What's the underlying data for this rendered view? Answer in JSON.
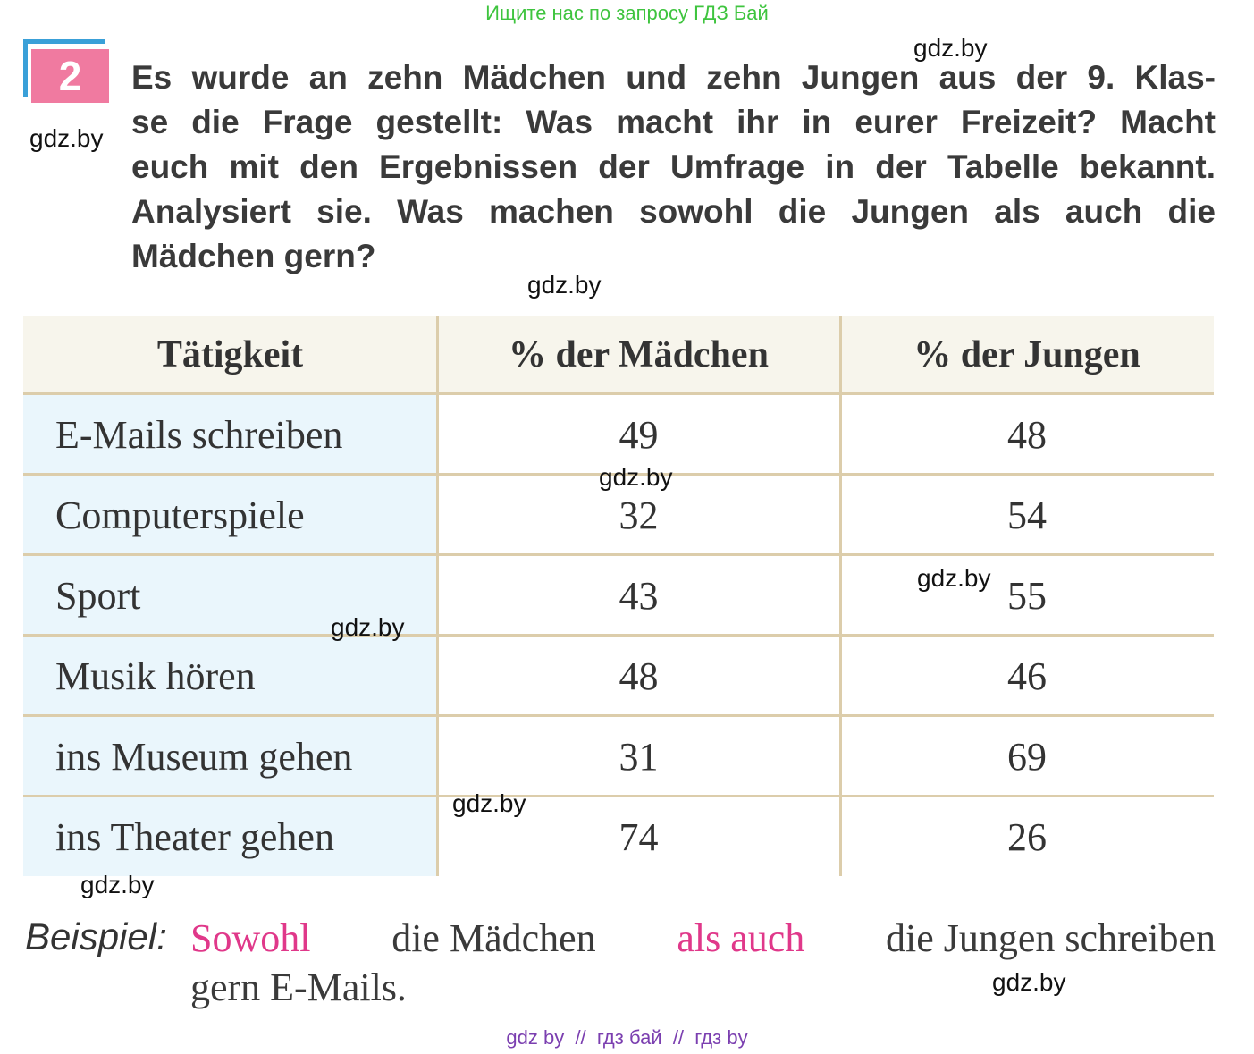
{
  "header": "Ищите нас по запросу ГДЗ Бай",
  "task": {
    "number": "2",
    "lines": [
      "Es wurde an zehn Mädchen und zehn Jungen aus der 9. Klas-",
      "se die Frage gestellt: Was macht ihr in eurer Freizeit? Macht",
      "euch mit den Ergebnissen der Umfrage in der Tabelle bekannt.",
      "Analysiert sie. Was machen sowohl die Jungen als auch die",
      "Mädchen gern?"
    ]
  },
  "table": {
    "headers": [
      "Tätigkeit",
      "% der Mädchen",
      "% der Jungen"
    ],
    "rows": [
      [
        "E-Mails schreiben",
        49,
        48
      ],
      [
        "Computerspiele",
        32,
        54
      ],
      [
        "Sport",
        43,
        55
      ],
      [
        "Musik hören",
        48,
        46
      ],
      [
        "ins Museum gehen",
        31,
        69
      ],
      [
        "ins Theater gehen",
        74,
        26
      ]
    ]
  },
  "example": {
    "label": "Beispiel:",
    "lines": [
      [
        {
          "text": "Sowohl",
          "color": "#e0388a"
        },
        {
          "text": "die Mädchen",
          "color": "#3a3a3a"
        },
        {
          "text": "als auch",
          "color": "#e0388a"
        },
        {
          "text": "die Jungen schreiben",
          "color": "#3a3a3a"
        }
      ],
      [
        {
          "text": "gern E-Mails.",
          "color": "#3a3a3a"
        }
      ]
    ]
  },
  "watermarks": [
    "gdz.by",
    "gdz.by",
    "gdz.by",
    "gdz.by",
    "gdz.by",
    "gdz.by",
    "gdz.by",
    "gdz.by",
    "gdz.by"
  ],
  "footer": "gdz by  //  гдз бай  //  гдз by"
}
